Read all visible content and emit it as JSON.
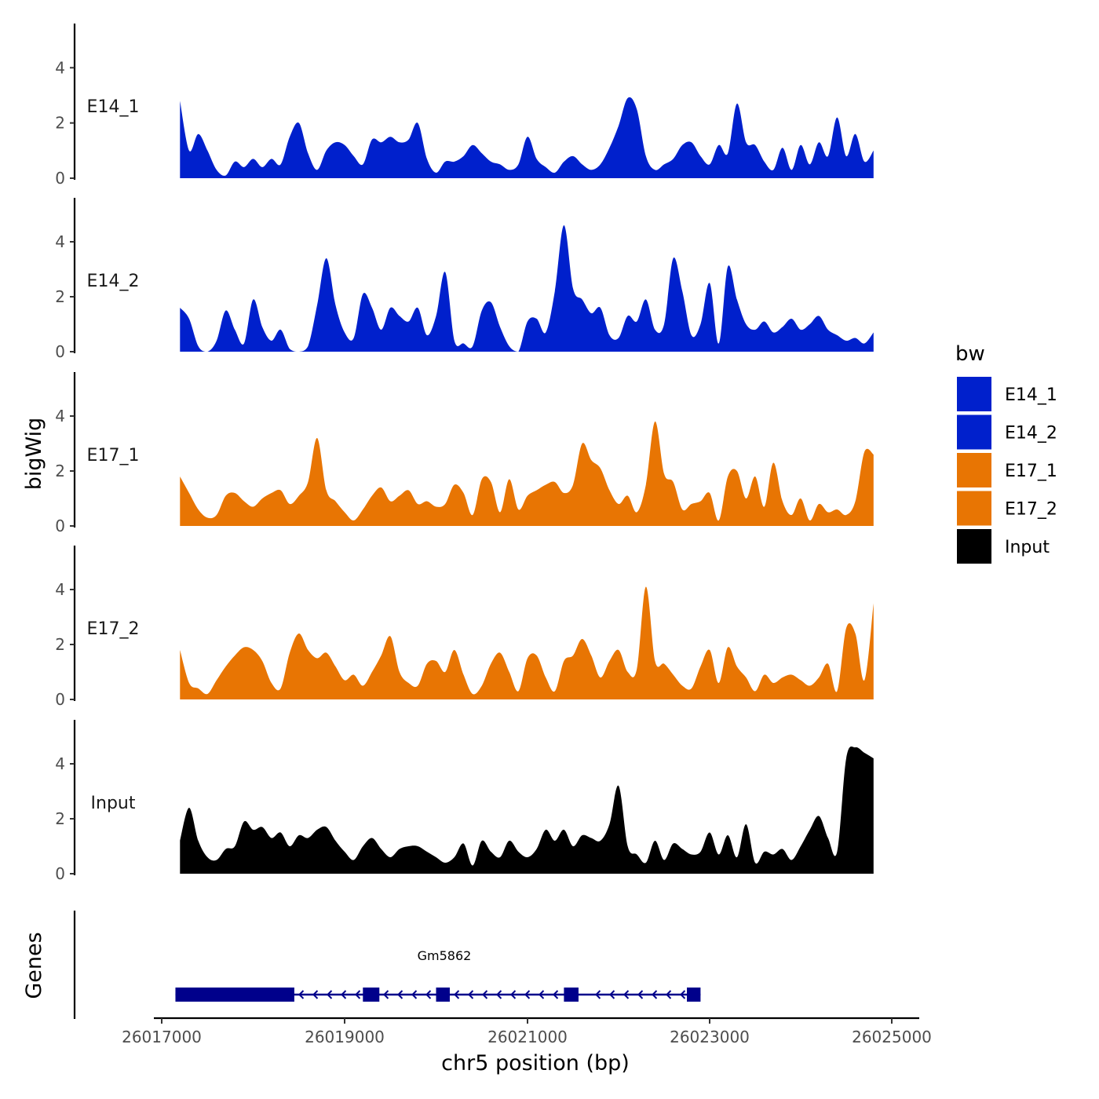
{
  "chart_data": {
    "type": "area",
    "chromosome": "chr5",
    "xlabel": "chr5 position (bp)",
    "ylabel": "bigWig",
    "genes_label": "Genes",
    "xlim": [
      26016950,
      26025100
    ],
    "ylim": [
      0,
      5.6
    ],
    "x_ticks": [
      26017000,
      26019000,
      26021000,
      26023000,
      26025000
    ],
    "x_tick_labels": [
      "26017000",
      "26019000",
      "26021000",
      "26023000",
      "26025000"
    ],
    "y_ticks": [
      0,
      2,
      4
    ],
    "y_tick_labels": [
      "0",
      "2",
      "4"
    ],
    "legend": {
      "title": "bw",
      "position": "right",
      "entries": [
        {
          "label": "E14_1",
          "color": "#0020CC"
        },
        {
          "label": "E14_2",
          "color": "#0020CC"
        },
        {
          "label": "E17_1",
          "color": "#E87503"
        },
        {
          "label": "E17_2",
          "color": "#E87503"
        },
        {
          "label": "Input",
          "color": "#000000"
        }
      ]
    },
    "x": [
      26017200,
      26017300,
      26017400,
      26017500,
      26017600,
      26017700,
      26017800,
      26017900,
      26018000,
      26018100,
      26018200,
      26018300,
      26018400,
      26018500,
      26018600,
      26018700,
      26018800,
      26018900,
      26019000,
      26019100,
      26019200,
      26019300,
      26019400,
      26019500,
      26019600,
      26019700,
      26019800,
      26019900,
      26020000,
      26020100,
      26020200,
      26020300,
      26020400,
      26020500,
      26020600,
      26020700,
      26020800,
      26020900,
      26021000,
      26021100,
      26021200,
      26021300,
      26021400,
      26021500,
      26021600,
      26021700,
      26021800,
      26021900,
      26022000,
      26022100,
      26022200,
      26022300,
      26022400,
      26022500,
      26022600,
      26022700,
      26022800,
      26022900,
      26023000,
      26023100,
      26023200,
      26023300,
      26023400,
      26023500,
      26023600,
      26023700,
      26023800,
      26023900,
      26024000,
      26024100,
      26024200,
      26024300,
      26024400,
      26024500,
      26024600,
      26024700,
      26024800
    ],
    "series": [
      {
        "name": "E14_1",
        "color": "#0020CC",
        "values": [
          2.8,
          1.0,
          1.6,
          1.0,
          0.3,
          0.1,
          0.6,
          0.4,
          0.7,
          0.4,
          0.7,
          0.5,
          1.5,
          2.0,
          0.9,
          0.3,
          1.0,
          1.3,
          1.2,
          0.8,
          0.5,
          1.4,
          1.3,
          1.5,
          1.3,
          1.4,
          2.0,
          0.7,
          0.2,
          0.6,
          0.6,
          0.8,
          1.2,
          0.9,
          0.6,
          0.5,
          0.3,
          0.5,
          1.5,
          0.7,
          0.4,
          0.2,
          0.6,
          0.8,
          0.5,
          0.3,
          0.5,
          1.1,
          1.9,
          2.9,
          2.5,
          0.8,
          0.3,
          0.5,
          0.7,
          1.2,
          1.3,
          0.8,
          0.5,
          1.2,
          0.9,
          2.7,
          1.3,
          1.2,
          0.6,
          0.3,
          1.1,
          0.3,
          1.2,
          0.5,
          1.3,
          0.8,
          2.2,
          0.8,
          1.6,
          0.6,
          1.0
        ]
      },
      {
        "name": "E14_2",
        "color": "#0020CC",
        "values": [
          1.6,
          1.2,
          0.2,
          0.0,
          0.4,
          1.5,
          0.8,
          0.3,
          1.9,
          0.9,
          0.4,
          0.8,
          0.1,
          0.0,
          0.2,
          1.7,
          3.4,
          1.7,
          0.7,
          0.5,
          2.1,
          1.6,
          0.8,
          1.6,
          1.3,
          1.1,
          1.6,
          0.6,
          1.3,
          2.9,
          0.4,
          0.3,
          0.2,
          1.5,
          1.8,
          0.9,
          0.2,
          0.0,
          1.1,
          1.2,
          0.7,
          2.2,
          4.6,
          2.3,
          1.9,
          1.4,
          1.6,
          0.6,
          0.5,
          1.3,
          1.1,
          1.9,
          0.8,
          1.0,
          3.4,
          2.2,
          0.6,
          1.0,
          2.5,
          0.3,
          3.1,
          1.9,
          1.0,
          0.8,
          1.1,
          0.7,
          0.9,
          1.2,
          0.8,
          1.0,
          1.3,
          0.8,
          0.6,
          0.4,
          0.5,
          0.3,
          0.7
        ]
      },
      {
        "name": "E17_1",
        "color": "#E87503",
        "values": [
          1.8,
          1.2,
          0.6,
          0.3,
          0.4,
          1.1,
          1.2,
          0.9,
          0.7,
          1.0,
          1.2,
          1.3,
          0.8,
          1.1,
          1.6,
          3.2,
          1.3,
          0.9,
          0.5,
          0.2,
          0.6,
          1.1,
          1.4,
          0.9,
          1.1,
          1.3,
          0.8,
          0.9,
          0.7,
          0.8,
          1.5,
          1.2,
          0.4,
          1.7,
          1.6,
          0.5,
          1.7,
          0.6,
          1.1,
          1.3,
          1.5,
          1.6,
          1.2,
          1.5,
          3.0,
          2.4,
          2.1,
          1.3,
          0.8,
          1.1,
          0.5,
          1.5,
          3.8,
          1.9,
          1.6,
          0.6,
          0.8,
          0.9,
          1.2,
          0.2,
          1.8,
          2.0,
          1.0,
          1.8,
          0.7,
          2.3,
          0.9,
          0.4,
          1.0,
          0.2,
          0.8,
          0.5,
          0.6,
          0.4,
          0.9,
          2.7,
          2.6
        ]
      },
      {
        "name": "E17_2",
        "color": "#E87503",
        "values": [
          1.8,
          0.6,
          0.4,
          0.2,
          0.7,
          1.2,
          1.6,
          1.9,
          1.8,
          1.4,
          0.6,
          0.4,
          1.7,
          2.4,
          1.8,
          1.5,
          1.7,
          1.2,
          0.7,
          0.9,
          0.5,
          1.0,
          1.6,
          2.3,
          1.0,
          0.6,
          0.5,
          1.3,
          1.4,
          1.0,
          1.8,
          0.9,
          0.2,
          0.5,
          1.3,
          1.7,
          1.0,
          0.3,
          1.5,
          1.6,
          0.8,
          0.3,
          1.4,
          1.6,
          2.2,
          1.6,
          0.8,
          1.4,
          1.8,
          1.0,
          1.1,
          4.1,
          1.4,
          1.3,
          0.9,
          0.5,
          0.4,
          1.2,
          1.8,
          0.6,
          1.9,
          1.2,
          0.8,
          0.3,
          0.9,
          0.6,
          0.8,
          0.9,
          0.7,
          0.5,
          0.8,
          1.3,
          0.3,
          2.6,
          2.4,
          0.7,
          3.5
        ]
      },
      {
        "name": "Input",
        "color": "#000000",
        "values": [
          1.2,
          2.4,
          1.2,
          0.6,
          0.5,
          0.9,
          1.0,
          1.9,
          1.6,
          1.7,
          1.3,
          1.5,
          1.0,
          1.4,
          1.3,
          1.6,
          1.7,
          1.2,
          0.8,
          0.5,
          1.0,
          1.3,
          0.9,
          0.6,
          0.9,
          1.0,
          1.0,
          0.8,
          0.6,
          0.4,
          0.6,
          1.1,
          0.3,
          1.2,
          0.8,
          0.6,
          1.2,
          0.8,
          0.6,
          0.9,
          1.6,
          1.2,
          1.6,
          1.0,
          1.4,
          1.3,
          1.2,
          1.8,
          3.2,
          1.0,
          0.7,
          0.4,
          1.2,
          0.5,
          1.1,
          0.9,
          0.7,
          0.8,
          1.5,
          0.7,
          1.4,
          0.6,
          1.8,
          0.4,
          0.8,
          0.7,
          0.9,
          0.5,
          1.0,
          1.6,
          2.1,
          1.3,
          0.8,
          4.2,
          4.6,
          4.4,
          4.2
        ]
      }
    ],
    "genes": [
      {
        "name": "Gm5862",
        "color": "#00008B",
        "strand": "-",
        "start": 26017150,
        "end": 26022900,
        "exons": [
          {
            "start": 26017150,
            "end": 26018450
          },
          {
            "start": 26019200,
            "end": 26019380
          },
          {
            "start": 26020000,
            "end": 26020150
          },
          {
            "start": 26021400,
            "end": 26021560
          },
          {
            "start": 26022750,
            "end": 26022900
          }
        ]
      }
    ]
  }
}
